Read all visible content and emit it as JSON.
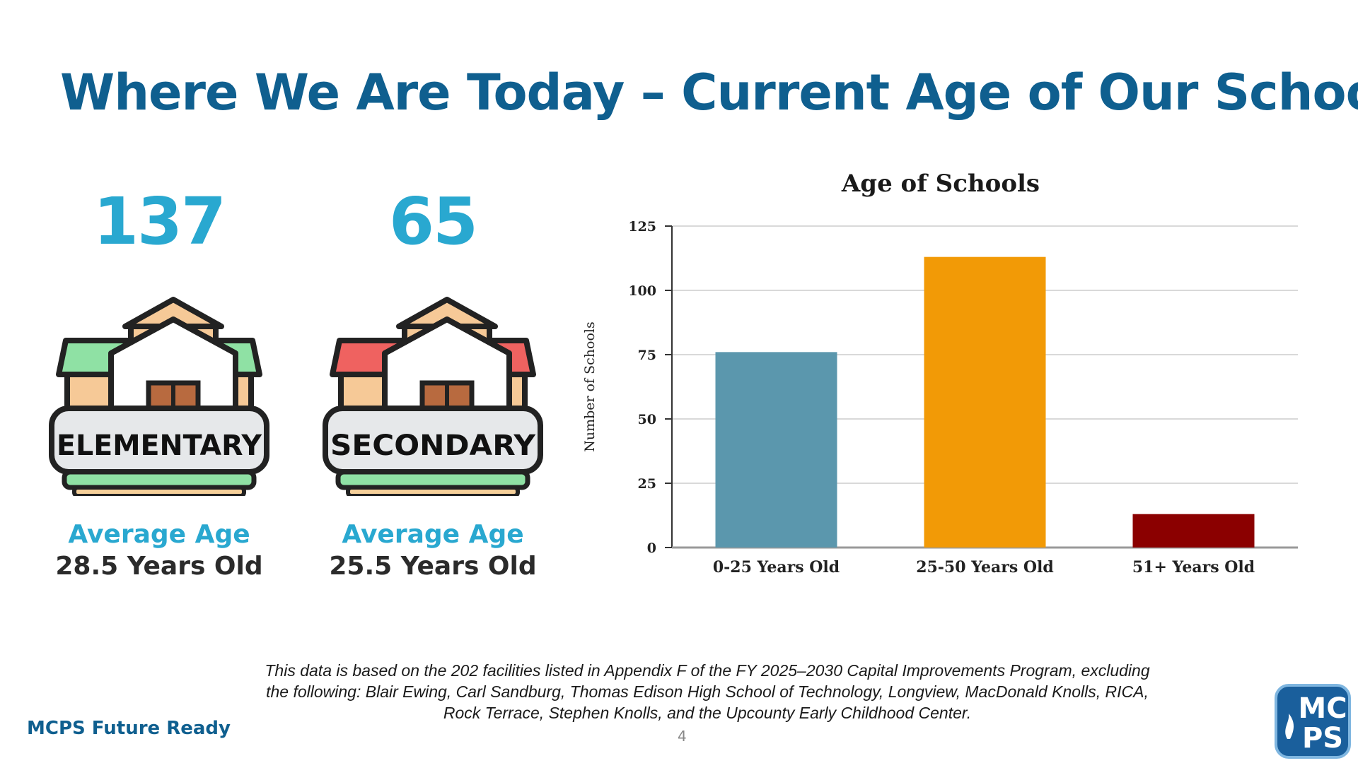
{
  "title": "Where We Are Today – Current Age of Our Schools",
  "elementary": {
    "count": "137",
    "badge": "ELEMENTARY",
    "avg_label": "Average Age",
    "avg_value": "28.5 Years Old"
  },
  "secondary": {
    "count": "65",
    "badge": "SECONDARY",
    "avg_label": "Average Age",
    "avg_value": "25.5 Years Old"
  },
  "chart_data": {
    "type": "bar",
    "title": "Age of Schools",
    "xlabel": "",
    "ylabel": "Number of Schools",
    "categories": [
      "0-25 Years Old",
      "25-50 Years Old",
      "51+ Years Old"
    ],
    "values": [
      76,
      113,
      13
    ],
    "colors": [
      "#5b97ad",
      "#f29a06",
      "#8b0000"
    ],
    "ylim": [
      0,
      125
    ],
    "yticks": [
      0,
      25,
      50,
      75,
      100,
      125
    ],
    "grid": true
  },
  "footnote": {
    "line1": "This data is based on the 202 facilities listed in Appendix F of the FY 2025–2030 Capital Improvements Program, excluding",
    "line2": "the following: Blair Ewing, Carl Sandburg, Thomas Edison High School of Technology, Longview, MacDonald Knolls, RICA,",
    "line3": "Rock Terrace, Stephen Knolls, and the Upcounty Early Childhood Center."
  },
  "brand": "MCPS Future Ready",
  "page_number": "4",
  "logo": {
    "top": "MC",
    "bottom": "PS"
  },
  "colors": {
    "title": "#0f5f8f",
    "accent": "#29a8d0",
    "dark": "#2b2b2b"
  }
}
